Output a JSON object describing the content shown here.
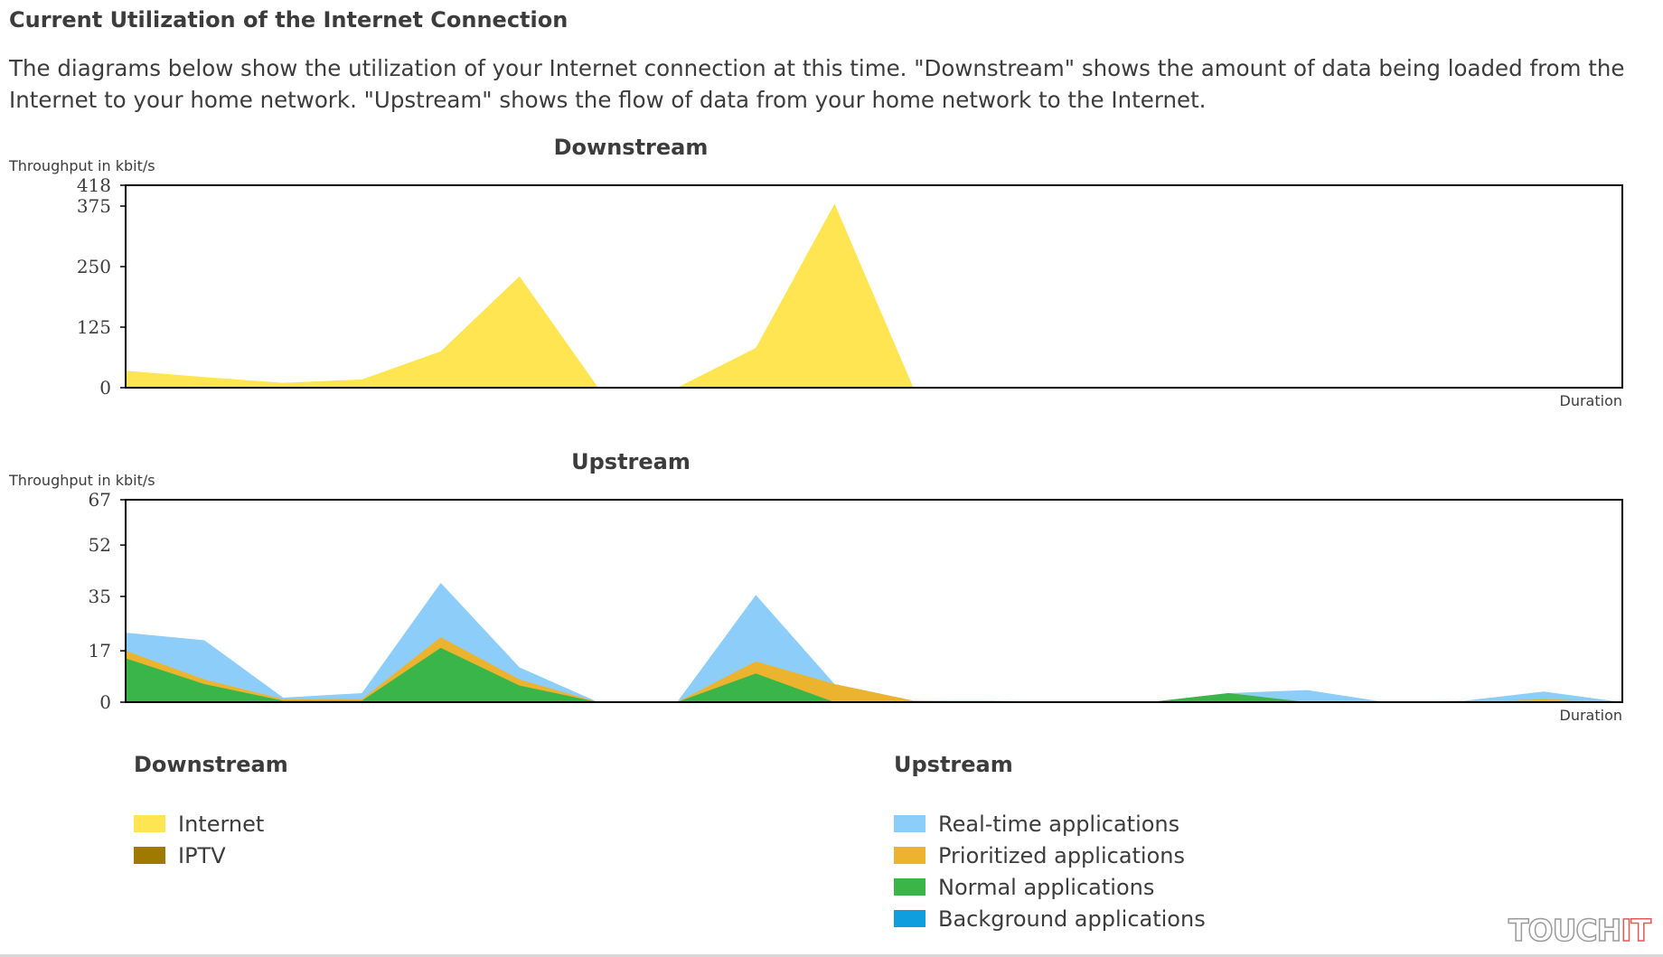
{
  "page": {
    "title": "Current Utilization of the Internet Connection",
    "description": "The diagrams below show the utilization of your Internet connection at this time. \"Downstream\" shows the amount of data being loaded from the Internet to your home network. \"Upstream\" shows the flow of data from your home network to the Internet."
  },
  "colors": {
    "internet": "#ffe552",
    "iptv": "#a07a00",
    "realtime": "#8ccdfa",
    "prioritized": "#ecb42e",
    "normal": "#3ab54a",
    "background": "#109ede"
  },
  "chart_data": [
    {
      "type": "area",
      "stacked": true,
      "title": "Downstream",
      "ylabel": "Throughput in kbit/s",
      "xlabel": "Duration",
      "ylim": [
        0,
        418
      ],
      "yticks": [
        0,
        125,
        250,
        375,
        418
      ],
      "x": [
        0,
        1,
        2,
        3,
        4,
        5,
        6,
        7,
        8,
        9,
        10,
        11,
        12,
        13,
        14,
        15,
        16,
        17,
        18,
        19
      ],
      "series": [
        {
          "name": "Internet",
          "color": "#ffe552",
          "values": [
            35,
            22,
            10,
            17,
            75,
            230,
            0,
            0,
            82,
            380,
            0,
            0,
            0,
            1,
            0,
            0,
            0,
            0,
            0,
            0
          ]
        },
        {
          "name": "IPTV",
          "color": "#a07a00",
          "values": [
            0,
            0,
            0,
            0,
            0,
            0,
            0,
            0,
            0,
            0,
            0,
            0,
            0,
            0,
            0,
            0,
            0,
            0,
            0,
            0
          ]
        }
      ],
      "grid": false
    },
    {
      "type": "area",
      "stacked": true,
      "title": "Upstream",
      "ylabel": "Throughput in kbit/s",
      "xlabel": "Duration",
      "ylim": [
        0,
        67
      ],
      "yticks": [
        0,
        17,
        35,
        52,
        67
      ],
      "x": [
        0,
        1,
        2,
        3,
        4,
        5,
        6,
        7,
        8,
        9,
        10,
        11,
        12,
        13,
        14,
        15,
        16,
        17,
        18,
        19
      ],
      "series": [
        {
          "name": "Background applications",
          "color": "#109ede",
          "values": [
            0,
            0,
            0,
            0,
            0,
            0,
            0,
            0,
            0,
            0,
            0,
            0,
            0,
            0,
            0,
            0,
            0,
            0,
            0,
            0
          ]
        },
        {
          "name": "Normal applications",
          "color": "#3ab54a",
          "values": [
            14.5,
            6,
            0.5,
            0.5,
            18,
            5.5,
            0,
            0,
            9.5,
            0,
            0,
            0,
            0,
            0,
            3,
            0,
            0,
            0,
            0,
            0
          ]
        },
        {
          "name": "Prioritized applications",
          "color": "#ecb42e",
          "values": [
            2.5,
            1.5,
            0.5,
            0.5,
            3.5,
            2,
            0,
            0,
            4,
            6,
            0.5,
            0,
            0,
            0,
            0,
            0,
            0,
            0,
            1,
            0
          ]
        },
        {
          "name": "Real-time applications",
          "color": "#8ccdfa",
          "values": [
            6,
            13,
            0.5,
            2,
            18,
            4,
            0,
            0,
            22,
            0,
            0,
            0.5,
            0,
            0,
            0,
            4,
            0,
            0.5,
            2.5,
            0
          ]
        }
      ],
      "grid": false
    }
  ],
  "legend": {
    "downstream": {
      "title": "Downstream",
      "items": [
        {
          "label": "Internet",
          "color": "#ffe552"
        },
        {
          "label": "IPTV",
          "color": "#a07a00"
        }
      ]
    },
    "upstream": {
      "title": "Upstream",
      "items": [
        {
          "label": "Real-time applications",
          "color": "#8ccdfa"
        },
        {
          "label": "Prioritized applications",
          "color": "#ecb42e"
        },
        {
          "label": "Normal applications",
          "color": "#3ab54a"
        },
        {
          "label": "Background applications",
          "color": "#109ede"
        }
      ]
    }
  },
  "watermark": {
    "part1": "TOUCH",
    "part2": "IT"
  }
}
